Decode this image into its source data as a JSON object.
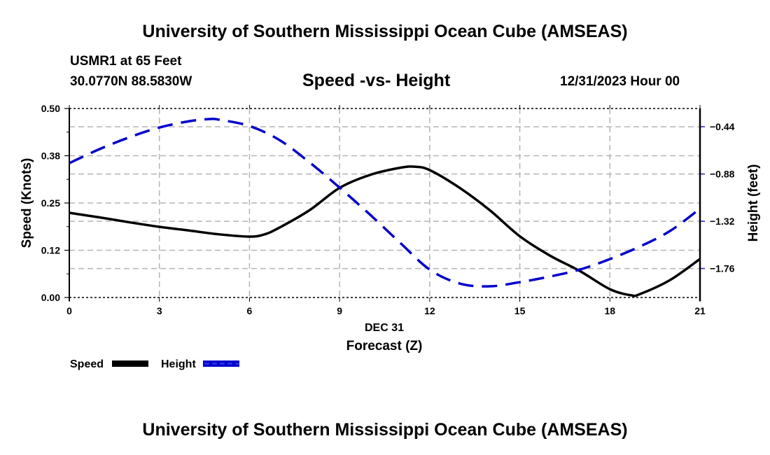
{
  "header": {
    "top_title": "University of Southern Mississippi Ocean Cube (AMSEAS)",
    "station": "USMR1 at 65 Feet",
    "coords": "30.0770N  88.5830W",
    "subtitle": "Speed -vs- Height",
    "datetime": "12/31/2023 Hour 00"
  },
  "footer": {
    "bottom_title": "University of Southern Mississippi Ocean Cube (AMSEAS)"
  },
  "chart_data": {
    "type": "line",
    "title": "Speed -vs- Height",
    "xlabel": "Forecast (Z)",
    "xsublabel": "DEC 31",
    "ylabel": "Speed (Knots)",
    "y2label": "Height (feet)",
    "xlim": [
      0,
      21
    ],
    "ylim": [
      0,
      0.5
    ],
    "y2lim": [
      -2.03,
      -0.27
    ],
    "x_ticks": [
      0,
      3,
      6,
      9,
      12,
      15,
      18,
      21
    ],
    "x_tick_labels": [
      "0",
      "3",
      "6",
      "9",
      "12",
      "15",
      "18",
      "21"
    ],
    "y_ticks": [
      0,
      0.125,
      0.25,
      0.375,
      0.5
    ],
    "y_tick_labels": [
      "0.00",
      "0.12",
      "0.25",
      "0.38",
      "0.50"
    ],
    "y2_ticks": [
      -0.44,
      -0.88,
      -1.32,
      -1.76
    ],
    "y2_tick_labels": [
      "−0.44",
      "−0.88",
      "−1.32",
      "−1.76"
    ],
    "grid": true,
    "legend_position": "bottom-left",
    "series": [
      {
        "name": "Speed",
        "axis": "left",
        "color": "#000000",
        "style": "solid",
        "x": [
          0,
          1,
          2,
          3,
          4,
          5,
          6,
          6.5,
          7,
          8,
          9,
          10,
          11,
          11.5,
          12,
          13,
          14,
          15,
          16,
          17,
          18,
          18.7,
          19,
          20,
          21
        ],
        "values": [
          0.224,
          0.212,
          0.199,
          0.187,
          0.177,
          0.167,
          0.161,
          0.167,
          0.185,
          0.231,
          0.29,
          0.324,
          0.343,
          0.346,
          0.337,
          0.29,
          0.231,
          0.162,
          0.111,
          0.07,
          0.022,
          0.006,
          0.009,
          0.046,
          0.102
        ]
      },
      {
        "name": "Height",
        "axis": "right",
        "color": "#0000cc",
        "style": "dashed",
        "x": [
          0,
          1,
          2,
          3,
          4,
          4.7,
          5,
          6,
          7,
          8,
          9,
          10,
          11,
          12,
          13,
          14,
          15,
          16,
          17,
          18,
          19,
          20,
          21
        ],
        "values": [
          -0.779,
          -0.649,
          -0.538,
          -0.447,
          -0.388,
          -0.368,
          -0.375,
          -0.433,
          -0.564,
          -0.772,
          -1.007,
          -1.255,
          -1.516,
          -1.77,
          -1.9,
          -1.926,
          -1.887,
          -1.835,
          -1.77,
          -1.672,
          -1.555,
          -1.411,
          -1.203
        ]
      }
    ]
  }
}
